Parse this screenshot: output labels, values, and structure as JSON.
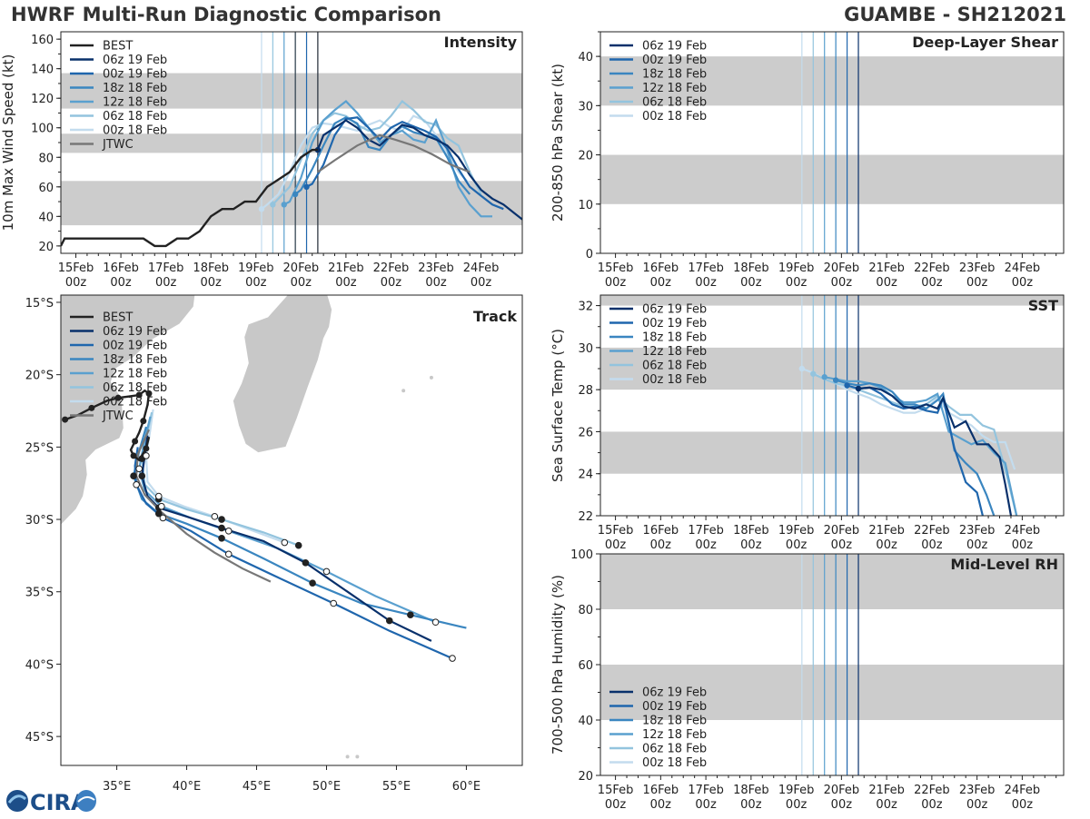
{
  "header": {
    "title": "HWRF Multi-Run Diagnostic Comparison",
    "storm": "GUAMBE - SH212021"
  },
  "logo": {
    "text": "CIRA"
  },
  "colors": {
    "best": "#222222",
    "jtwc": "#777777",
    "band": "#cccccc",
    "runs": [
      "#08306b",
      "#1f66ad",
      "#3a86c0",
      "#5aa0cf",
      "#93c4de",
      "#c3dcee"
    ]
  },
  "runs": [
    "06z 19 Feb",
    "00z 19 Feb",
    "18z 18 Feb",
    "12z 18 Feb",
    "06z 18 Feb",
    "00z 18 Feb"
  ],
  "run_hours": [
    129,
    123,
    117,
    111,
    105,
    99
  ],
  "time_axis": {
    "range_hours": [
      -8,
      238
    ],
    "ticks": [
      {
        "h": 0,
        "l1": "15Feb",
        "l2": "00z"
      },
      {
        "h": 24,
        "l1": "16Feb",
        "l2": "00z"
      },
      {
        "h": 48,
        "l1": "17Feb",
        "l2": "00z"
      },
      {
        "h": 72,
        "l1": "18Feb",
        "l2": "00z"
      },
      {
        "h": 96,
        "l1": "19Feb",
        "l2": "00z"
      },
      {
        "h": 120,
        "l1": "20Feb",
        "l2": "00z"
      },
      {
        "h": 144,
        "l1": "21Feb",
        "l2": "00z"
      },
      {
        "h": 168,
        "l1": "22Feb",
        "l2": "00z"
      },
      {
        "h": 192,
        "l1": "23Feb",
        "l2": "00z"
      },
      {
        "h": 216,
        "l1": "24Feb",
        "l2": "00z"
      }
    ]
  },
  "chart_data": [
    {
      "id": "intensity",
      "type": "line",
      "title": "Intensity",
      "ylabel": "10m Max Wind Speed (kt)",
      "ylim": [
        15,
        165
      ],
      "yticks": [
        20,
        40,
        60,
        80,
        100,
        120,
        140,
        160
      ],
      "bands": [
        [
          34,
          64
        ],
        [
          83,
          96
        ],
        [
          113,
          137
        ]
      ],
      "legend": [
        "BEST",
        "06z 19 Feb",
        "00z 19 Feb",
        "18z 18 Feb",
        "12z 18 Feb",
        "06z 18 Feb",
        "00z 18 Feb",
        "JTWC"
      ],
      "best": {
        "name": "BEST",
        "x": [
          -8,
          -6,
          0,
          6,
          12,
          18,
          24,
          30,
          36,
          42,
          48,
          54,
          60,
          66,
          72,
          78,
          84,
          90,
          96,
          102,
          108,
          114,
          120,
          126,
          129
        ],
        "y": [
          20,
          25,
          25,
          25,
          25,
          25,
          25,
          25,
          25,
          20,
          20,
          25,
          25,
          30,
          40,
          45,
          45,
          50,
          50,
          60,
          65,
          70,
          80,
          85,
          85
        ]
      },
      "jtwc": {
        "name": "JTWC",
        "x": [
          129,
          138,
          150,
          162,
          170,
          180,
          190,
          200,
          210
        ],
        "y": [
          70,
          78,
          88,
          95,
          92,
          88,
          82,
          75,
          70
        ]
      },
      "series": [
        {
          "name": "06z 19 Feb",
          "x": [
            129,
            132,
            138,
            144,
            150,
            156,
            162,
            168,
            174,
            180,
            186,
            192,
            198,
            204,
            210,
            216,
            222,
            228,
            234,
            238
          ],
          "y": [
            85,
            95,
            100,
            105,
            100,
            92,
            88,
            95,
            102,
            100,
            95,
            92,
            88,
            80,
            68,
            58,
            52,
            48,
            42,
            38
          ]
        },
        {
          "name": "00z 19 Feb",
          "x": [
            123,
            126,
            132,
            138,
            144,
            150,
            156,
            162,
            168,
            174,
            180,
            186,
            192,
            198,
            204,
            210,
            216,
            222,
            228
          ],
          "y": [
            60,
            62,
            75,
            95,
            106,
            107,
            100,
            92,
            100,
            104,
            101,
            98,
            94,
            86,
            72,
            60,
            54,
            48,
            45
          ]
        },
        {
          "name": "18z 18 Feb",
          "x": [
            117,
            120,
            126,
            132,
            138,
            144,
            150,
            156,
            162,
            168,
            174,
            180,
            186,
            192,
            198,
            204,
            210
          ],
          "y": [
            55,
            58,
            72,
            88,
            103,
            107,
            103,
            87,
            85,
            95,
            101,
            97,
            95,
            93,
            80,
            64,
            55
          ]
        },
        {
          "name": "12z 18 Feb",
          "x": [
            111,
            114,
            120,
            126,
            132,
            138,
            144,
            150,
            156,
            162,
            168,
            174,
            180,
            186,
            192,
            198,
            204,
            210,
            216,
            222
          ],
          "y": [
            48,
            50,
            66,
            90,
            105,
            112,
            118,
            110,
            100,
            90,
            95,
            98,
            92,
            90,
            105,
            85,
            60,
            48,
            40,
            40
          ]
        },
        {
          "name": "06z 18 Feb",
          "x": [
            105,
            108,
            114,
            120,
            126,
            132,
            138,
            144,
            150,
            156,
            162,
            168,
            174,
            180,
            186,
            192,
            198,
            204,
            210,
            216
          ],
          "y": [
            48,
            52,
            60,
            78,
            96,
            105,
            110,
            108,
            102,
            98,
            100,
            108,
            118,
            112,
            104,
            102,
            93,
            88,
            70,
            55
          ]
        },
        {
          "name": "00z 18 Feb",
          "x": [
            99,
            102,
            108,
            114,
            120,
            126,
            132,
            138,
            144,
            150,
            156,
            162,
            168,
            174,
            180,
            186,
            192,
            198,
            204,
            210
          ],
          "y": [
            45,
            48,
            55,
            70,
            88,
            100,
            103,
            102,
            100,
            98,
            102,
            105,
            100,
            98,
            108,
            105,
            95,
            82,
            70,
            62
          ]
        }
      ]
    },
    {
      "id": "track",
      "type": "line",
      "title": "Track",
      "xlim": [
        31,
        64
      ],
      "ylim": [
        -47,
        -14.5
      ],
      "xticks": [
        {
          "v": 35,
          "l": "35°E"
        },
        {
          "v": 40,
          "l": "40°E"
        },
        {
          "v": 45,
          "l": "45°E"
        },
        {
          "v": 50,
          "l": "50°E"
        },
        {
          "v": 55,
          "l": "55°E"
        },
        {
          "v": 60,
          "l": "60°E"
        }
      ],
      "yticks": [
        {
          "v": -15,
          "l": "15°S"
        },
        {
          "v": -20,
          "l": "20°S"
        },
        {
          "v": -25,
          "l": "25°S"
        },
        {
          "v": -30,
          "l": "30°S"
        },
        {
          "v": -35,
          "l": "35°S"
        },
        {
          "v": -40,
          "l": "40°S"
        },
        {
          "v": -45,
          "l": "45°S"
        }
      ],
      "legend": [
        "BEST",
        "06z 19 Feb",
        "00z 19 Feb",
        "18z 18 Feb",
        "12z 18 Feb",
        "06z 18 Feb",
        "00z 18 Feb",
        "JTWC"
      ],
      "best": {
        "name": "BEST",
        "lon": [
          31.3,
          32.2,
          33.2,
          34.3,
          35.1,
          35.9,
          36.6,
          37.0,
          37.3,
          37.2,
          36.9,
          36.6,
          36.3,
          36.0,
          36.2,
          36.6,
          37.1,
          37.3
        ],
        "lat": [
          -23.1,
          -22.8,
          -22.3,
          -21.8,
          -21.6,
          -21.5,
          -21.4,
          -21.1,
          -21.3,
          -22.1,
          -23.2,
          -24.0,
          -24.6,
          -25.2,
          -25.6,
          -25.9,
          -25.1,
          -24.3
        ]
      },
      "jtwc": {
        "name": "JTWC",
        "lon": [
          37.3,
          36.5,
          36.4,
          37.0,
          38.2,
          40.0,
          42.0,
          44.0,
          46.0
        ],
        "lat": [
          -23.8,
          -25.5,
          -27.0,
          -28.3,
          -29.5,
          -31.0,
          -32.3,
          -33.4,
          -34.3
        ]
      },
      "series": [
        {
          "name": "06z 19 Feb",
          "lon": [
            37.2,
            37.0,
            36.8,
            37.2,
            38.0,
            40.0,
            42.5,
            45.5,
            48.5,
            51.5,
            54.5,
            57.5
          ],
          "lat": [
            -24.2,
            -25.6,
            -27.0,
            -28.4,
            -29.2,
            -29.8,
            -30.6,
            -31.5,
            -33.0,
            -35.0,
            -37.0,
            -38.4
          ]
        },
        {
          "name": "00z 19 Feb",
          "lon": [
            36.5,
            36.3,
            36.4,
            37.1,
            38.3,
            40.3,
            43.0,
            46.5,
            50.5,
            54.5,
            59.0
          ],
          "lat": [
            -25.0,
            -26.3,
            -27.6,
            -28.9,
            -29.9,
            -30.8,
            -32.4,
            -34.0,
            -35.8,
            -37.7,
            -39.6
          ]
        },
        {
          "name": "18z 18 Feb",
          "lon": [
            37.1,
            36.6,
            36.2,
            36.8,
            38.0,
            40.0,
            42.5,
            45.5,
            49.0,
            52.5,
            56.0,
            60.0
          ],
          "lat": [
            -23.6,
            -25.3,
            -27.0,
            -28.6,
            -29.6,
            -30.3,
            -31.3,
            -32.7,
            -34.4,
            -35.8,
            -36.6,
            -37.5
          ]
        },
        {
          "name": "12z 18 Feb",
          "lon": [
            37.4,
            37.0,
            36.6,
            37.0,
            38.2,
            40.3,
            43.0,
            46.5,
            50.0,
            53.5,
            57.8
          ],
          "lat": [
            -22.9,
            -24.5,
            -26.5,
            -28.0,
            -29.1,
            -29.9,
            -30.8,
            -32.0,
            -33.6,
            -35.3,
            -37.1
          ]
        },
        {
          "name": "06z 18 Feb",
          "lon": [
            37.5,
            37.2,
            36.8,
            37.0,
            38.0,
            40.0,
            42.5,
            45.5,
            48.0
          ],
          "lat": [
            -22.6,
            -24.0,
            -25.8,
            -27.6,
            -28.6,
            -29.3,
            -30.0,
            -30.9,
            -31.8
          ]
        },
        {
          "name": "00z 18 Feb",
          "lon": [
            37.6,
            37.4,
            37.1,
            37.2,
            38.0,
            39.8,
            42.0,
            44.5,
            47.0
          ],
          "lat": [
            -22.4,
            -23.8,
            -25.6,
            -27.4,
            -28.4,
            -29.1,
            -29.8,
            -30.7,
            -31.6
          ]
        }
      ]
    },
    {
      "id": "shear",
      "type": "line",
      "title": "Deep-Layer Shear",
      "ylabel": "200-850 hPa Shear (kt)",
      "ylim": [
        0,
        45
      ],
      "yticks": [
        0,
        10,
        20,
        30,
        40
      ],
      "bands": [
        [
          10,
          20
        ],
        [
          30,
          40
        ]
      ],
      "legend": [
        "06z 19 Feb",
        "00z 19 Feb",
        "18z 18 Feb",
        "12z 18 Feb",
        "06z 18 Feb",
        "00z 18 Feb"
      ],
      "series": []
    },
    {
      "id": "sst",
      "type": "line",
      "title": "SST",
      "ylabel": "Sea Surface Temp (°C)",
      "ylim": [
        22,
        32.5
      ],
      "yticks": [
        22,
        24,
        26,
        28,
        30,
        32
      ],
      "bands": [
        [
          24,
          26
        ],
        [
          28,
          30
        ],
        [
          32,
          32.5
        ]
      ],
      "legend": [
        "06z 19 Feb",
        "00z 19 Feb",
        "18z 18 Feb",
        "12z 18 Feb",
        "06z 18 Feb",
        "00z 18 Feb"
      ],
      "series": [
        {
          "name": "06z 19 Feb",
          "x": [
            129,
            135,
            141,
            147,
            153,
            159,
            165,
            171,
            174,
            180,
            186,
            192,
            198,
            204,
            207,
            210
          ],
          "y": [
            28.05,
            28.1,
            28.0,
            27.7,
            27.2,
            27.1,
            27.3,
            27.1,
            27.6,
            26.2,
            26.5,
            25.4,
            25.4,
            24.8,
            23.5,
            22.0
          ]
        },
        {
          "name": "00z 19 Feb",
          "x": [
            123,
            129,
            135,
            141,
            147,
            153,
            159,
            165,
            171,
            174,
            180,
            186,
            192,
            195
          ],
          "y": [
            28.2,
            28.05,
            28.1,
            27.8,
            27.3,
            27.1,
            27.2,
            27.0,
            26.9,
            27.6,
            25.2,
            23.6,
            23.1,
            22.0
          ]
        },
        {
          "name": "18z 18 Feb",
          "x": [
            117,
            123,
            129,
            135,
            141,
            147,
            153,
            159,
            165,
            171,
            174,
            180,
            186,
            192,
            197,
            201
          ],
          "y": [
            28.45,
            28.3,
            28.2,
            28.3,
            28.2,
            27.9,
            27.3,
            27.3,
            27.1,
            27.5,
            27.8,
            25.1,
            24.5,
            24.0,
            23.0,
            22.0
          ]
        },
        {
          "name": "12z 18 Feb",
          "x": [
            111,
            117,
            123,
            129,
            135,
            141,
            147,
            153,
            159,
            165,
            171,
            177,
            183,
            189,
            195,
            201,
            207,
            213
          ],
          "y": [
            28.6,
            28.5,
            28.4,
            28.4,
            28.3,
            28.1,
            27.7,
            27.4,
            27.4,
            27.5,
            27.8,
            26.0,
            25.7,
            25.4,
            25.6,
            25.0,
            24.5,
            22.0
          ]
        },
        {
          "name": "06z 18 Feb",
          "x": [
            105,
            111,
            117,
            123,
            129,
            135,
            141,
            147,
            153,
            159,
            165,
            171,
            177,
            183,
            189,
            195,
            201,
            207,
            213
          ],
          "y": [
            28.75,
            28.5,
            28.3,
            28.2,
            28.0,
            27.8,
            27.6,
            27.4,
            27.2,
            27.2,
            27.3,
            27.7,
            27.2,
            26.8,
            26.8,
            26.3,
            26.1,
            24.2,
            22.0
          ]
        },
        {
          "name": "00z 18 Feb",
          "x": [
            99,
            105,
            111,
            117,
            123,
            129,
            135,
            141,
            147,
            153,
            159,
            165,
            171,
            177,
            183,
            189,
            195,
            201,
            207,
            212
          ],
          "y": [
            29.0,
            28.8,
            28.5,
            28.3,
            28.0,
            27.8,
            27.6,
            27.3,
            27.1,
            26.9,
            26.9,
            27.1,
            27.6,
            26.9,
            26.6,
            26.3,
            25.8,
            25.5,
            25.5,
            24.2
          ]
        }
      ]
    },
    {
      "id": "rh",
      "type": "line",
      "title": "Mid-Level RH",
      "ylabel": "700-500 hPa Humidity (%)",
      "ylim": [
        20,
        100
      ],
      "yticks": [
        20,
        40,
        60,
        80,
        100
      ],
      "bands": [
        [
          40,
          60
        ],
        [
          80,
          100
        ]
      ],
      "legend": [
        "06z 19 Feb",
        "00z 19 Feb",
        "18z 18 Feb",
        "12z 18 Feb",
        "06z 18 Feb",
        "00z 18 Feb"
      ],
      "series": []
    }
  ]
}
